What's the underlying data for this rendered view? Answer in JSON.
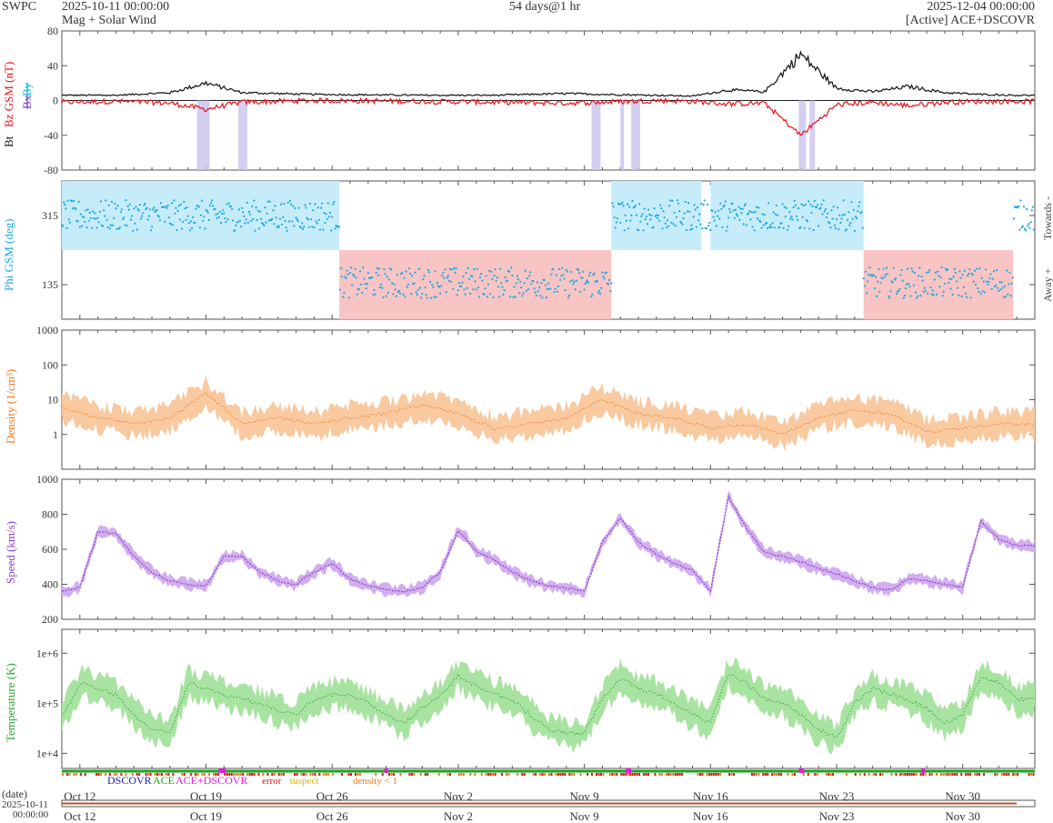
{
  "header": {
    "brand": "SWPC",
    "start": "2025-10-11 00:00:00",
    "subtitle": "Mag + Solar Wind",
    "span": "54 days@1 hr",
    "end": "2025-12-04 00:00:00",
    "source": "[Active] ACE+DSCOVR"
  },
  "colors": {
    "bt": "#111111",
    "bz": "#e8141c",
    "bx": "#7b3fc4",
    "by": "#19b3e6",
    "towards_band": "#c6ecfa",
    "away_band": "#f9c4c4",
    "phi": "#1ba8e0",
    "density": "#f07a1c",
    "density_band": "#f9c9a0",
    "speed": "#8e3fc8",
    "speed_band": "#d2aef0",
    "temp": "#2aa830",
    "temp_band": "#a9e3a2",
    "mag_fill": "#c9c2ee",
    "status_dscovr": "#1a1acc",
    "status_ace": "#19a619",
    "status_mix": "#e01ee0",
    "status_error": "#e01010",
    "status_suspect": "#e8b000",
    "status_density": "#f07a1c"
  },
  "time_axis": {
    "ticks": [
      "Oct 12",
      "Oct 19",
      "Oct 26",
      "Nov 2",
      "Nov 9",
      "Nov 16",
      "Nov 23",
      "Nov 30"
    ],
    "tick_days": [
      1,
      8,
      15,
      22,
      29,
      36,
      43,
      50
    ],
    "total_days": 54,
    "date_label": "(date)",
    "date_value": "2025-10-11",
    "time_value": "00:00:00"
  },
  "status_legend": {
    "dscovr": "DSCOVR",
    "ace": "ACE",
    "mix": "ACE+DSCOVR",
    "error": "error",
    "suspect": "suspect",
    "density": "density < 1"
  },
  "panels": {
    "mag": {
      "ylabel_bt": "Bt",
      "ylabel_bz": "Bz GSM (nT)",
      "ylabel_bx": "Bx",
      "ylabel_by": "By",
      "yticks": [
        "80",
        "40",
        "0",
        "-40",
        "-80"
      ],
      "ylim": [
        -80,
        80
      ]
    },
    "phi": {
      "ylabel": "Phi GSM (deg)",
      "yticks": [
        "315",
        "135"
      ],
      "ylim": [
        45,
        405
      ],
      "right_top": "Towards -",
      "right_bottom": "Away +"
    },
    "density": {
      "ylabel": "Density (1/cm³)",
      "yticks": [
        "1000",
        "100",
        "10",
        "1"
      ],
      "ylim": [
        0.1,
        1000
      ],
      "scale": "log"
    },
    "speed": {
      "ylabel": "Speed (km/s)",
      "yticks": [
        "1000",
        "800",
        "600",
        "400",
        "200"
      ],
      "ylim": [
        200,
        1000
      ]
    },
    "temp": {
      "ylabel": "Temperature (K)",
      "yticks": [
        "1e+6",
        "1e+5",
        "1e+4"
      ],
      "ylim": [
        5000,
        3000000
      ],
      "scale": "log"
    }
  },
  "chart_data": [
    {
      "type": "line",
      "title": "",
      "ylabel": "Bt, Bz GSM (nT)",
      "ylim": [
        -80,
        80
      ],
      "x_unit": "days since 2025-10-11",
      "series": [
        {
          "name": "Bt",
          "x": [
            0,
            3,
            6,
            8,
            10,
            14,
            20,
            24,
            28,
            30,
            33,
            35,
            37,
            39,
            41,
            43,
            45,
            47,
            49,
            51,
            53
          ],
          "values": [
            6,
            6,
            9,
            20,
            9,
            7,
            6,
            6,
            8,
            7,
            6,
            5,
            12,
            10,
            53,
            14,
            10,
            16,
            9,
            7,
            6
          ]
        },
        {
          "name": "Bz GSM",
          "x": [
            0,
            3,
            6,
            8,
            10,
            14,
            20,
            24,
            28,
            30,
            33,
            35,
            37,
            39,
            41,
            43,
            45,
            47,
            49,
            51,
            53
          ],
          "values": [
            -2,
            -1,
            -3,
            -10,
            -2,
            0,
            -1,
            -2,
            -3,
            -2,
            0,
            -1,
            -4,
            -3,
            -40,
            -5,
            -2,
            -6,
            -2,
            -1,
            -1
          ]
        }
      ]
    },
    {
      "type": "scatter",
      "title": "",
      "ylabel": "Phi GSM (deg)",
      "ylim": [
        45,
        405
      ],
      "x_unit": "days since 2025-10-11",
      "series": [
        {
          "name": "Phi GSM",
          "x": [
            0,
            2,
            4,
            6,
            8,
            10,
            12,
            14,
            16,
            18,
            20,
            22,
            24,
            26,
            28,
            30,
            32,
            34,
            36,
            38,
            40,
            42,
            44,
            46,
            48,
            50,
            52,
            53
          ],
          "values": [
            320,
            315,
            310,
            300,
            250,
            320,
            330,
            315,
            310,
            140,
            135,
            135,
            140,
            130,
            135,
            320,
            330,
            315,
            310,
            300,
            320,
            310,
            300,
            135,
            140,
            135,
            140,
            135
          ]
        }
      ]
    },
    {
      "type": "line",
      "title": "",
      "ylabel": "Density (1/cm3)",
      "yscale": "log",
      "ylim": [
        0.1,
        1000
      ],
      "x_unit": "days since 2025-10-11",
      "series": [
        {
          "name": "Density",
          "x": [
            0,
            2,
            4,
            6,
            8,
            10,
            12,
            14,
            16,
            18,
            20,
            22,
            24,
            26,
            28,
            30,
            32,
            34,
            36,
            38,
            40,
            42,
            44,
            46,
            48,
            50,
            52,
            53
          ],
          "values": [
            6,
            3,
            2,
            3,
            15,
            2,
            3,
            2,
            3,
            4,
            7,
            4,
            1.5,
            2,
            3,
            10,
            4,
            3,
            1.5,
            2,
            1,
            3,
            5,
            4,
            1.2,
            1.5,
            2,
            2
          ]
        }
      ]
    },
    {
      "type": "line",
      "title": "",
      "ylabel": "Speed (km/s)",
      "ylim": [
        200,
        1000
      ],
      "x_unit": "days since 2025-10-11",
      "series": [
        {
          "name": "Speed",
          "x": [
            0,
            1,
            2,
            3,
            4,
            5,
            6,
            7,
            8,
            9,
            10,
            11,
            12,
            13,
            14,
            15,
            16,
            17,
            18,
            19,
            20,
            21,
            22,
            23,
            24,
            25,
            26,
            27,
            28,
            29,
            30,
            31,
            32,
            33,
            34,
            35,
            36,
            37,
            38,
            39,
            40,
            41,
            42,
            43,
            44,
            45,
            46,
            47,
            48,
            49,
            50,
            51,
            52,
            53
          ],
          "values": [
            360,
            380,
            700,
            690,
            560,
            470,
            420,
            400,
            390,
            560,
            560,
            470,
            420,
            400,
            470,
            520,
            430,
            390,
            370,
            360,
            380,
            470,
            710,
            590,
            540,
            470,
            420,
            390,
            380,
            360,
            640,
            780,
            640,
            570,
            520,
            480,
            360,
            900,
            720,
            580,
            560,
            530,
            490,
            460,
            420,
            380,
            370,
            430,
            420,
            400,
            380,
            760,
            660,
            620
          ]
        }
      ]
    },
    {
      "type": "line",
      "title": "",
      "ylabel": "Temperature (K)",
      "yscale": "log",
      "ylim": [
        5000,
        3000000
      ],
      "x_unit": "days since 2025-10-11",
      "series": [
        {
          "name": "Temperature",
          "x": [
            0,
            1,
            2,
            3,
            4,
            5,
            6,
            7,
            8,
            9,
            10,
            11,
            12,
            13,
            14,
            15,
            16,
            17,
            18,
            19,
            20,
            21,
            22,
            23,
            24,
            25,
            26,
            27,
            28,
            29,
            30,
            31,
            32,
            33,
            34,
            35,
            36,
            37,
            38,
            39,
            40,
            41,
            42,
            43,
            44,
            45,
            46,
            47,
            48,
            49,
            50,
            51,
            52,
            53
          ],
          "values": [
            50000,
            250000,
            200000,
            150000,
            60000,
            30000,
            25000,
            250000,
            200000,
            150000,
            120000,
            100000,
            70000,
            60000,
            120000,
            150000,
            140000,
            100000,
            60000,
            40000,
            80000,
            140000,
            350000,
            220000,
            150000,
            120000,
            60000,
            30000,
            25000,
            25000,
            120000,
            320000,
            200000,
            160000,
            100000,
            60000,
            40000,
            400000,
            250000,
            120000,
            100000,
            60000,
            30000,
            20000,
            100000,
            200000,
            150000,
            120000,
            80000,
            40000,
            60000,
            350000,
            260000,
            120000
          ]
        }
      ]
    }
  ]
}
